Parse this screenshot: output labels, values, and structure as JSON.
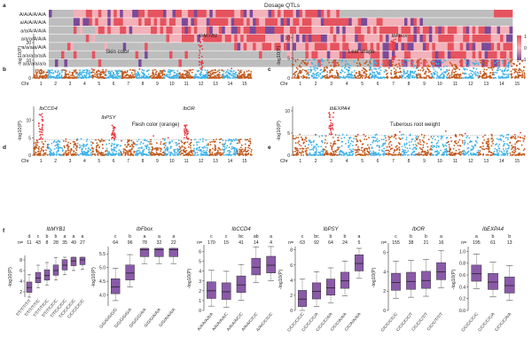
{
  "colors": {
    "orange": "#c2571a",
    "blue": "#3db2e8",
    "red": "#e8383f",
    "purple": "#8a5aa8",
    "grey": "#bdbdbd",
    "pink": "#f2a3ac",
    "heat_high": "#e5535e",
    "heat_mid": "#f3b1b9",
    "heat_low": "#7a4a9a"
  },
  "panel_a": {
    "letter": "a",
    "title": "Dosage QTLs",
    "rows": [
      "A/A/A/A/A/A",
      "a/A/A/A/A/A",
      "a/a/A/A/A/A",
      "a/a/a/A/A/A",
      "a/a/a/a/A/A",
      "a/a/a/a/a/A",
      "a/a/a/a/a/a"
    ],
    "scale_labels": [
      "1",
      "0",
      "-1"
    ]
  },
  "manhattan": [
    {
      "letter": "b",
      "trait": "Skin color",
      "gene": "IbMYB1",
      "peak_chr": 12,
      "ylabel": "-log10(P)",
      "yticks": [
        "0",
        "10",
        "20"
      ],
      "chr_label": "Chr",
      "chrs": [
        "1",
        "2",
        "3",
        "4",
        "5",
        "6",
        "7",
        "8",
        "9",
        "10",
        "11",
        "12",
        "13",
        "14",
        "15"
      ]
    },
    {
      "letter": "c",
      "trait": "Leaf shape",
      "gene": "IbFbox",
      "peak_chr": 7,
      "ylabel": "-log10(P)",
      "yticks": [
        "0",
        "5",
        "10"
      ],
      "chr_label": "Chr",
      "chrs": [
        "1",
        "2",
        "3",
        "4",
        "5",
        "6",
        "7",
        "8",
        "9",
        "10",
        "11",
        "12",
        "13",
        "14",
        "15"
      ]
    },
    {
      "letter": "d",
      "trait": "Flesh color (orange)",
      "gene": "IbCCD4",
      "gene2": "IbPSY",
      "gene3": "IbOR",
      "peak_chr": 1,
      "ylabel": "-log10(P)",
      "yticks": [
        "0",
        "5",
        "10"
      ],
      "chr_label": "Chr",
      "chrs": [
        "1",
        "2",
        "3",
        "4",
        "5",
        "6",
        "7",
        "8",
        "9",
        "10",
        "11",
        "12",
        "13",
        "14",
        "15"
      ]
    },
    {
      "letter": "e",
      "trait": "Tuberous root weight",
      "gene": "IbEXPA4",
      "peak_chr": 3,
      "ylabel": "-log10(P)",
      "yticks": [
        "0",
        "5",
        "10"
      ],
      "chr_label": "Chr",
      "chrs": [
        "1",
        "2",
        "3",
        "4",
        "5",
        "6",
        "7",
        "8",
        "9",
        "10",
        "11",
        "12",
        "13",
        "14",
        "15"
      ]
    }
  ],
  "panel_f": {
    "letter": "f",
    "groups": [
      {
        "gene": "IbMYB1",
        "n_prefix": "n=",
        "ns": [
          "11",
          "43",
          "8",
          "28",
          "35",
          "49",
          "27"
        ],
        "letters": [
          "d",
          "c",
          "b",
          "b",
          "a",
          "a",
          "a"
        ],
        "genotypes": [
          "T/T/T/T/T/T",
          "T/T/T/T/T/C",
          "T/T/T/T/C/C",
          "T/T/T/C/C/C",
          "T/T/C/C/C/C",
          "T/C/C/C/C/C",
          "C/C/C/C/C/C"
        ],
        "yticks": [
          "2",
          "4",
          "6",
          "8"
        ],
        "ylabel": "-log10(P)"
      },
      {
        "gene": "IbFbox",
        "ns": [
          "64",
          "96",
          "78",
          "32",
          "22"
        ],
        "letters": [
          "c",
          "b",
          "a",
          "a",
          "a"
        ],
        "genotypes": [
          "G/G/G/G/G/G",
          "G/G/G/G/G/A",
          "G/G/G/G/A/A",
          "G/G/G/A/A/A",
          "G/G/A/A/A/A"
        ],
        "yticks": [
          "4.0",
          "4.5",
          "5.0",
          "5.5"
        ],
        "ylabel": "-log10(P)"
      },
      {
        "gene": "IbCCD4",
        "n_prefix": "n=",
        "ns": [
          "170",
          "15",
          "41",
          "14",
          "4"
        ],
        "letters": [
          "c",
          "c",
          "bc",
          "ab",
          "a"
        ],
        "genotypes": [
          "A/A/A/A/A/A",
          "A/A/A/A/A/C",
          "A/A/A/A/C/C",
          "A/A/A/C/C/C",
          "A/A/C/C/C/C"
        ],
        "yticks": [
          "0",
          "1",
          "2",
          "3",
          "4",
          "5",
          "6"
        ],
        "ylabel": "-log10(P)"
      },
      {
        "gene": "IbPSY",
        "n_prefix": "n=",
        "ns": [
          "63",
          "92",
          "64",
          "24",
          "5"
        ],
        "letters": [
          "c",
          "bc",
          "b",
          "b",
          "a"
        ],
        "genotypes": [
          "C/C/C/C/C/C",
          "C/C/C/C/C/A",
          "C/C/C/C/A/A",
          "C/C/C/A/A/A",
          "C/C/A/A/A/A"
        ],
        "yticks": [
          "0",
          "2",
          "4",
          "6",
          "8"
        ],
        "ylabel": "-log10(P)"
      },
      {
        "gene": "IbOR",
        "n_prefix": "n=",
        "ns": [
          "155",
          "38",
          "21",
          "16"
        ],
        "letters": [
          "c",
          "b",
          "b",
          "a"
        ],
        "genotypes": [
          "C/C/C/C/C/C",
          "C/C/C/C/C/T",
          "C/C/C/C/T/T",
          "C/C/C/T/T/T"
        ],
        "yticks": [
          "0",
          "2",
          "4",
          "6"
        ],
        "ylabel": "-log10(P)"
      },
      {
        "gene": "IbEXPA4",
        "n_prefix": "n=",
        "ns": [
          "195",
          "61",
          "13"
        ],
        "letters": [
          "a",
          "b",
          "b"
        ],
        "genotypes": [
          "C/C/C/C/C/C",
          "C/C/C/C/C/A",
          "C/C/C/C/A/A"
        ],
        "yticks": [
          "0.0",
          "0.2",
          "0.4",
          "0.6",
          "0.8",
          "1.0"
        ],
        "ylabel": "-log10(P)"
      }
    ]
  }
}
